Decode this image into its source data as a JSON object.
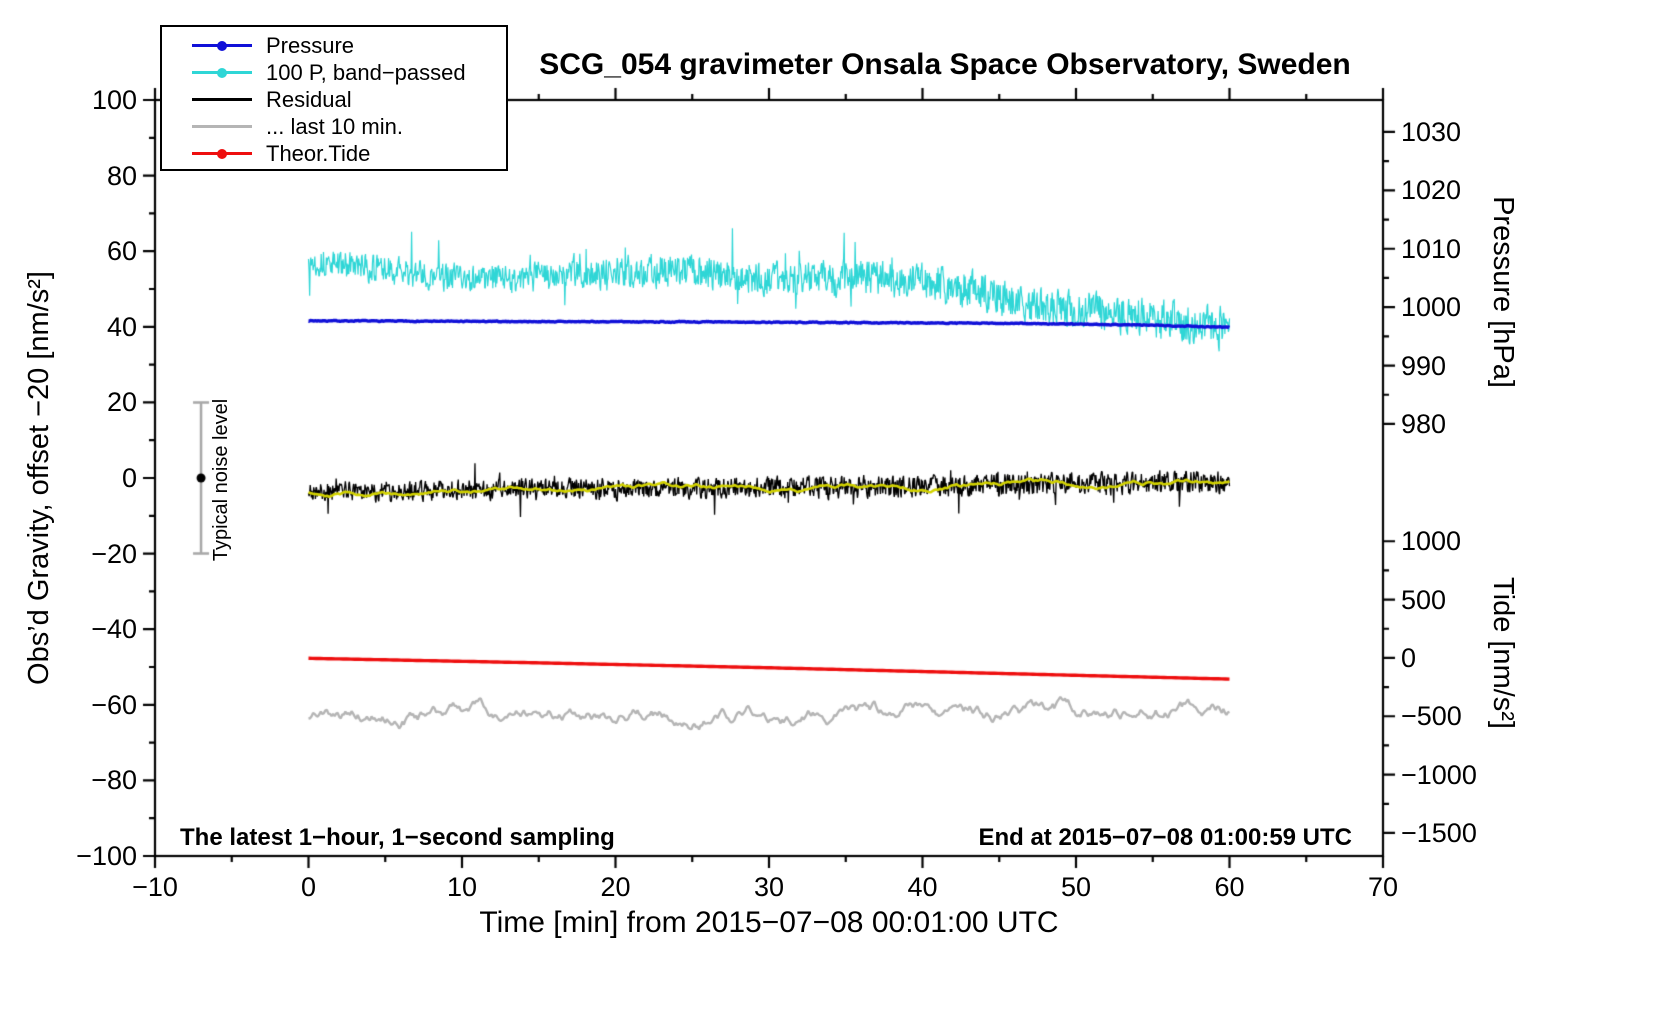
{
  "annotations": {
    "sampling": "The latest 1−hour, 1−second sampling",
    "end": "End at 2015−07−08 01:00:59 UTC"
  },
  "legend": {
    "entries": [
      {
        "label": "Pressure",
        "color": "#1010d8",
        "marker": "dot-line"
      },
      {
        "label": "100 P, band−passed",
        "color": "#2fd6d6",
        "marker": "dot-line"
      },
      {
        "label": "Residual",
        "color": "#000000",
        "marker": "line"
      },
      {
        "label": "... last 10 min.",
        "color": "#b5b5b5",
        "marker": "line"
      },
      {
        "label": "Theor.Tide",
        "color": "#ee0e0e",
        "marker": "dot-line"
      }
    ]
  },
  "chart_data": {
    "type": "line",
    "title": "SCG_054 gravimeter Onsala Space Observatory, Sweden",
    "xlabel": "Time [min] from 2015−07−08 00:01:00 UTC",
    "ylabel_left": "Obs’d Gravity, offset −20 [nm/s²]",
    "xlim": [
      -10,
      70
    ],
    "ylim_left": [
      -100,
      100
    ],
    "grid": false,
    "legend_position": "top-left",
    "xticks": {
      "values": [
        -10,
        0,
        10,
        20,
        30,
        40,
        50,
        60,
        70
      ],
      "labels": [
        "−10",
        "0",
        "10",
        "20",
        "30",
        "40",
        "50",
        "60",
        "70"
      ],
      "minor_step": 5
    },
    "yticks_left": {
      "values": [
        100,
        80,
        60,
        40,
        20,
        0,
        -20,
        -40,
        -60,
        -80,
        -100
      ],
      "labels": [
        "100",
        "80",
        "60",
        "40",
        "20",
        "0",
        "−20",
        "−40",
        "−60",
        "−80",
        "−100"
      ],
      "minor_step": 10
    },
    "right_axes": [
      {
        "name": "pressure",
        "label": "Pressure [hPa]",
        "tick_values": [
          1030,
          1020,
          1010,
          1000,
          990,
          980
        ],
        "tick_labels": [
          "1030",
          "1020",
          "1010",
          "1000",
          "990",
          "980"
        ],
        "minor_step": 5,
        "map": {
          "value0": 1000,
          "left0": 45.2,
          "left_per_unit": 1.545
        }
      },
      {
        "name": "tide",
        "label": "Tide [nm/s²]",
        "tick_values": [
          1000,
          500,
          0,
          -500,
          -1000,
          -1500
        ],
        "tick_labels": [
          "1000",
          "500",
          "0",
          "−500",
          "−1000",
          "−1500"
        ],
        "minor_step": 250,
        "map": {
          "value0": 0,
          "left0": -47.6,
          "left_per_unit": 0.03087
        }
      }
    ],
    "noise_marker": {
      "x": -7,
      "y": 0,
      "bar_min": -20,
      "bar_max": 20,
      "label": "Typical noise level",
      "bar_color": "#a8a8a8",
      "dot_color": "#000000"
    },
    "series": [
      {
        "name": "100 P, band−passed",
        "color": "#2fd6d6",
        "width": 1.2,
        "points": 1600,
        "seed": 13,
        "rho": 0.25,
        "noise_amp": 3.3,
        "noise_grow": 0.55,
        "spikes": 0.012,
        "spike_amp": 9,
        "anchors": [
          [
            0,
            57.5
          ],
          [
            4,
            55.5
          ],
          [
            8,
            53.5
          ],
          [
            12,
            52.5
          ],
          [
            16,
            53.5
          ],
          [
            20,
            54.5
          ],
          [
            24,
            55
          ],
          [
            28,
            53.5
          ],
          [
            32,
            52.5
          ],
          [
            36,
            53
          ],
          [
            40,
            52
          ],
          [
            43,
            50
          ],
          [
            46,
            46.5
          ],
          [
            50,
            44.5
          ],
          [
            54,
            42.5
          ],
          [
            57,
            41
          ],
          [
            60,
            39.5
          ]
        ]
      },
      {
        "name": "Pressure",
        "color": "#1010d8",
        "width": 3.4,
        "points": 1200,
        "seed": 7,
        "rho": 0.5,
        "noise_amp": 0.1,
        "noise_grow": 0,
        "spikes": 0,
        "spike_amp": 0,
        "anchors": [
          [
            0,
            41.6
          ],
          [
            12,
            41.4
          ],
          [
            24,
            41.3
          ],
          [
            36,
            41.1
          ],
          [
            46,
            40.9
          ],
          [
            54,
            40.5
          ],
          [
            60,
            39.9
          ]
        ],
        "approx_pressure_hPa": [
          [
            0,
            997.6
          ],
          [
            30,
            997.3
          ],
          [
            60,
            996.5
          ]
        ]
      },
      {
        "name": "Residual",
        "color": "#000000",
        "width": 1.3,
        "points": 1600,
        "seed": 21,
        "rho": 0.25,
        "noise_amp": 2.5,
        "noise_grow": 0.15,
        "spikes": 0.01,
        "spike_amp": 6,
        "anchors": [
          [
            0,
            -3.6
          ],
          [
            10,
            -3.2
          ],
          [
            20,
            -2.9
          ],
          [
            30,
            -2.6
          ],
          [
            40,
            -2.2
          ],
          [
            50,
            -1.6
          ],
          [
            60,
            -0.9
          ]
        ]
      },
      {
        "name": "Residual smoothed",
        "color": "#d2d200",
        "width": 2.6,
        "points": 500,
        "seed": 29,
        "rho": 0.96,
        "noise_amp": 0.32,
        "noise_grow": 0,
        "spikes": 0,
        "spike_amp": 0,
        "anchors": [
          [
            0,
            -3.6
          ],
          [
            10,
            -3.2
          ],
          [
            20,
            -2.9
          ],
          [
            30,
            -2.6
          ],
          [
            40,
            -2.2
          ],
          [
            50,
            -1.6
          ],
          [
            60,
            -0.9
          ]
        ]
      },
      {
        "name": "... last 10 min.",
        "color": "#b5b5b5",
        "width": 2.4,
        "points": 600,
        "seed": 35,
        "rho": 0.93,
        "noise_amp": 1.05,
        "noise_grow": 0,
        "spikes": 0,
        "spike_amp": 0,
        "anchors": [
          [
            0,
            -62.6
          ],
          [
            10,
            -62.4
          ],
          [
            20,
            -62.5
          ],
          [
            30,
            -62.2
          ],
          [
            40,
            -62.4
          ],
          [
            50,
            -61.9
          ],
          [
            60,
            -61.4
          ]
        ]
      },
      {
        "name": "Theor.Tide",
        "color": "#ee0e0e",
        "width": 3.4,
        "points": 240,
        "seed": 41,
        "rho": 0,
        "noise_amp": 0,
        "noise_grow": 0,
        "spikes": 0,
        "spike_amp": 0,
        "anchors": [
          [
            0,
            -47.7
          ],
          [
            15,
            -48.9
          ],
          [
            30,
            -50.2
          ],
          [
            45,
            -51.7
          ],
          [
            60,
            -53.2
          ]
        ],
        "approx_tide_nms2": [
          [
            0,
            5
          ],
          [
            30,
            -80
          ],
          [
            60,
            -180
          ]
        ]
      }
    ]
  }
}
